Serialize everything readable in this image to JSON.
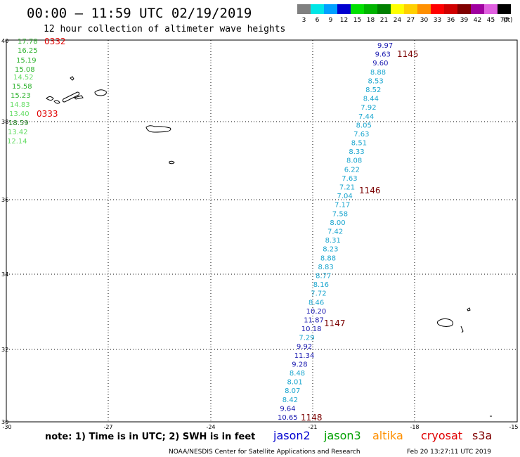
{
  "header": {
    "title": "00:00 – 11:59 UTC 02/19/2019",
    "subtitle": "12 hour collection of altimeter wave heights"
  },
  "legend": {
    "unit_label": "(ft)",
    "bins": [
      {
        "label": "3",
        "color": "#808080"
      },
      {
        "label": "6",
        "color": "#00e6e6"
      },
      {
        "label": "9",
        "color": "#00a0ff"
      },
      {
        "label": "12",
        "color": "#0000d0"
      },
      {
        "label": "15",
        "color": "#00e000"
      },
      {
        "label": "18",
        "color": "#00b400"
      },
      {
        "label": "21",
        "color": "#008000"
      },
      {
        "label": "24",
        "color": "#ffff00"
      },
      {
        "label": "27",
        "color": "#ffd000"
      },
      {
        "label": "30",
        "color": "#ff9000"
      },
      {
        "label": "33",
        "color": "#ff0000"
      },
      {
        "label": "36",
        "color": "#d00000"
      },
      {
        "label": "39",
        "color": "#800000"
      },
      {
        "label": "42",
        "color": "#a000a0"
      },
      {
        "label": "45",
        "color": "#e060e0"
      },
      {
        "label": "70",
        "color": "#000000"
      }
    ]
  },
  "axes": {
    "lon_labels": [
      "-30",
      "-27",
      "-24",
      "-21",
      "-18",
      "-15"
    ],
    "lat_labels": [
      "40",
      "38",
      "36",
      "34",
      "32",
      "30"
    ]
  },
  "tracks": {
    "west": {
      "readings": [
        {
          "text": "17.78",
          "color": "#2bb12b"
        },
        {
          "text": "16.25",
          "color": "#2bb12b"
        },
        {
          "text": "15.19",
          "color": "#2bb12b"
        },
        {
          "text": "15.08",
          "color": "#2bb12b"
        },
        {
          "text": "14.52",
          "color": "#66dd66"
        },
        {
          "text": "15.58",
          "color": "#2bb12b"
        },
        {
          "text": "15.23",
          "color": "#2bb12b"
        },
        {
          "text": "14.83",
          "color": "#66dd66"
        },
        {
          "text": "13.40",
          "color": "#66dd66"
        },
        {
          "text": "18.59",
          "color": "#1a7a1a"
        },
        {
          "text": "13.42",
          "color": "#66dd66"
        },
        {
          "text": "12.14",
          "color": "#66dd66"
        }
      ],
      "times": [
        {
          "text": "0332",
          "color": "#e00000"
        },
        {
          "text": "0333",
          "color": "#e00000"
        }
      ]
    },
    "east": {
      "readings": [
        {
          "text": "9.97",
          "color": "#1a1ab0"
        },
        {
          "text": "9.63",
          "color": "#1a1ab0"
        },
        {
          "text": "9.60",
          "color": "#1a1ab0"
        },
        {
          "text": "8.88",
          "color": "#1ba6cf"
        },
        {
          "text": "8.53",
          "color": "#1ba6cf"
        },
        {
          "text": "8.52",
          "color": "#1ba6cf"
        },
        {
          "text": "8.44",
          "color": "#1ba6cf"
        },
        {
          "text": "7.92",
          "color": "#1ba6cf"
        },
        {
          "text": "7.44",
          "color": "#1ba6cf"
        },
        {
          "text": "8.05",
          "color": "#1ba6cf"
        },
        {
          "text": "7.63",
          "color": "#1ba6cf"
        },
        {
          "text": "8.51",
          "color": "#1ba6cf"
        },
        {
          "text": "8.33",
          "color": "#1ba6cf"
        },
        {
          "text": "8.08",
          "color": "#1ba6cf"
        },
        {
          "text": "6.22",
          "color": "#1ba6cf"
        },
        {
          "text": "7.63",
          "color": "#1ba6cf"
        },
        {
          "text": "7.21",
          "color": "#1ba6cf"
        },
        {
          "text": "7.04",
          "color": "#1ba6cf"
        },
        {
          "text": "7.17",
          "color": "#1ba6cf"
        },
        {
          "text": "7.58",
          "color": "#1ba6cf"
        },
        {
          "text": "8.00",
          "color": "#1ba6cf"
        },
        {
          "text": "7.42",
          "color": "#1ba6cf"
        },
        {
          "text": "8.31",
          "color": "#1ba6cf"
        },
        {
          "text": "8.23",
          "color": "#1ba6cf"
        },
        {
          "text": "8.88",
          "color": "#1ba6cf"
        },
        {
          "text": "8.83",
          "color": "#1ba6cf"
        },
        {
          "text": "8.77",
          "color": "#1ba6cf"
        },
        {
          "text": "8.16",
          "color": "#1ba6cf"
        },
        {
          "text": "7.72",
          "color": "#1ba6cf"
        },
        {
          "text": "8.46",
          "color": "#1ba6cf"
        },
        {
          "text": "10.20",
          "color": "#1a1ab0"
        },
        {
          "text": "11.87",
          "color": "#1a1ab0"
        },
        {
          "text": "10.18",
          "color": "#1a1ab0"
        },
        {
          "text": "7.29",
          "color": "#1ba6cf"
        },
        {
          "text": "9.92",
          "color": "#1a1ab0"
        },
        {
          "text": "11.34",
          "color": "#1a1ab0"
        },
        {
          "text": "9.28",
          "color": "#1a1ab0"
        },
        {
          "text": "8.48",
          "color": "#1ba6cf"
        },
        {
          "text": "8.01",
          "color": "#1ba6cf"
        },
        {
          "text": "8.07",
          "color": "#1ba6cf"
        },
        {
          "text": "8.42",
          "color": "#1ba6cf"
        },
        {
          "text": "9.64",
          "color": "#1a1ab0"
        },
        {
          "text": "10.65",
          "color": "#1a1ab0"
        }
      ],
      "times": [
        {
          "text": "1145",
          "color": "#7a0000"
        },
        {
          "text": "1146",
          "color": "#7a0000"
        },
        {
          "text": "1147",
          "color": "#7a0000"
        },
        {
          "text": "1148",
          "color": "#7a0000"
        }
      ]
    }
  },
  "footer": {
    "note": "note: 1) Time is in UTC; 2) SWH is in feet",
    "satellites": [
      {
        "name": "jason2",
        "color": "#0000d0"
      },
      {
        "name": "jason3",
        "color": "#00a000"
      },
      {
        "name": "altika",
        "color": "#ff9000"
      },
      {
        "name": "cryosat",
        "color": "#e00000"
      },
      {
        "name": "s3a",
        "color": "#800000"
      }
    ],
    "credit": "NOAA/NESDIS Center for Satellite Applications and Research",
    "timestamp": "Feb 20 13:27:11 UTC 2019"
  }
}
